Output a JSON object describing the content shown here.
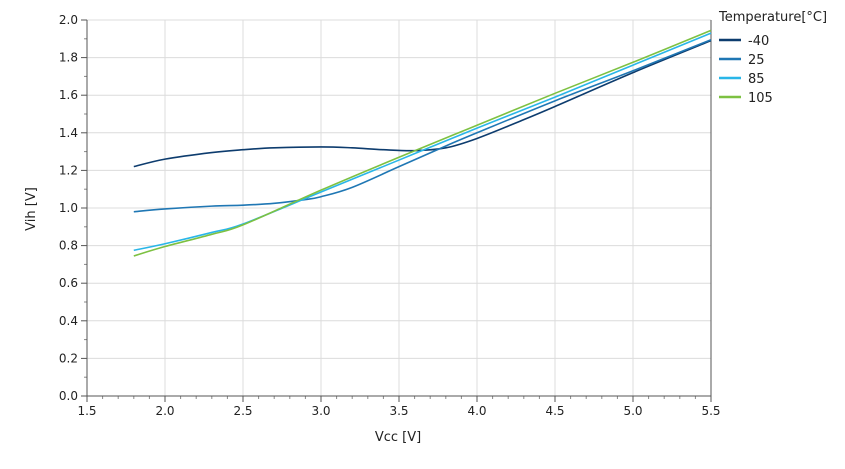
{
  "chart_data": {
    "type": "line",
    "xlabel": "Vcc [V]",
    "ylabel": "Vih [V]",
    "xlim": [
      1.5,
      5.5
    ],
    "ylim": [
      0.0,
      2.0
    ],
    "xticks": [
      "1.5",
      "2.0",
      "2.5",
      "3.0",
      "3.5",
      "4.0",
      "4.5",
      "5.0",
      "5.5"
    ],
    "yticks": [
      "0.0",
      "0.2",
      "0.4",
      "0.6",
      "0.8",
      "1.0",
      "1.2",
      "1.4",
      "1.6",
      "1.8",
      "2.0"
    ],
    "grid": true,
    "legend": {
      "title": "Temperature[°C]",
      "placement": "right"
    },
    "series": [
      {
        "name": "-40",
        "color": "#0d3c6e",
        "x": [
          1.8,
          2.0,
          2.3,
          2.5,
          2.7,
          3.0,
          3.2,
          3.4,
          3.6,
          3.8,
          4.0,
          4.3,
          4.5,
          5.0,
          5.5
        ],
        "y": [
          1.22,
          1.26,
          1.295,
          1.31,
          1.32,
          1.325,
          1.32,
          1.31,
          1.305,
          1.32,
          1.37,
          1.47,
          1.54,
          1.72,
          1.89
        ]
      },
      {
        "name": "25",
        "color": "#1f77b4",
        "x": [
          1.8,
          2.0,
          2.3,
          2.5,
          2.7,
          2.9,
          3.0,
          3.2,
          3.5,
          3.8,
          4.0,
          4.5,
          5.0,
          5.5
        ],
        "y": [
          0.98,
          0.995,
          1.01,
          1.015,
          1.025,
          1.045,
          1.06,
          1.11,
          1.22,
          1.33,
          1.4,
          1.57,
          1.73,
          1.895
        ]
      },
      {
        "name": "85",
        "color": "#29b6e8",
        "x": [
          1.8,
          2.0,
          2.3,
          2.5,
          3.0,
          3.5,
          4.0,
          4.5,
          5.0,
          5.5
        ],
        "y": [
          0.775,
          0.81,
          0.87,
          0.915,
          1.085,
          1.255,
          1.425,
          1.59,
          1.76,
          1.93
        ]
      },
      {
        "name": "105",
        "color": "#7dc142",
        "x": [
          1.8,
          2.0,
          2.3,
          2.5,
          3.0,
          3.5,
          4.0,
          4.5,
          5.0,
          5.5
        ],
        "y": [
          0.745,
          0.795,
          0.86,
          0.91,
          1.095,
          1.27,
          1.44,
          1.61,
          1.775,
          1.945
        ]
      }
    ]
  }
}
